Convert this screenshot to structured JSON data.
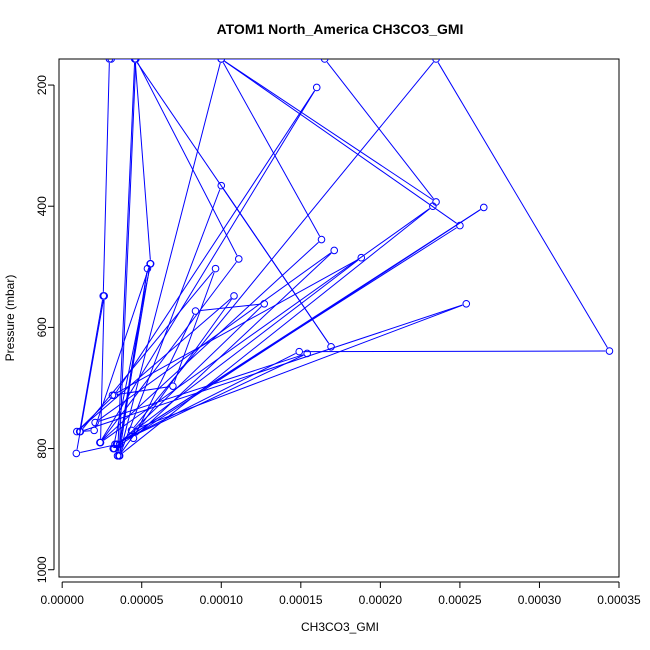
{
  "chart_data": {
    "type": "line",
    "title": "ATOM1 North_America CH3CO3_GMI",
    "xlabel": "CH3CO3_GMI",
    "ylabel": "Pressure (mbar)",
    "xlim": [
      -2e-06,
      0.00035
    ],
    "ylim": [
      1012,
      157
    ],
    "y_reversed": true,
    "grid": false,
    "legend": "none",
    "line_color": "#0000ff",
    "marker": "open-circle",
    "x_ticks": [
      "0.00000",
      "0.00005",
      "0.00010",
      "0.00015",
      "0.00020",
      "0.00025",
      "0.00030",
      "0.00035"
    ],
    "x_tick_values": [
      0.0,
      5e-05,
      0.0001,
      0.00015,
      0.0002,
      0.00025,
      0.0003,
      0.00035
    ],
    "y_ticks": [
      "200",
      "400",
      "600",
      "800",
      "1000"
    ],
    "y_tick_values": [
      200,
      400,
      600,
      800,
      1000
    ],
    "series": [
      {
        "x": [
          3.08e-05,
          4.58e-05,
          5.56e-05,
          3.21e-05,
          3.61e-05,
          0.0001,
          0.000169,
          4.56e-05,
          3.48e-05,
          5.36e-05,
          3.58e-05,
          0.0001,
          0.000163,
          2.37e-05,
          0.00016,
          3.27e-05,
          9.2e-06,
          0.000108,
          3.57e-05,
          0.000233,
          2.41e-05,
          2.64e-05,
          8.9e-06,
          3.47e-05,
          0.000265,
          3.27e-05,
          0.000127,
          8.38e-05,
          4.48e-05,
          0.000171,
          2.07e-05,
          0.000154,
          3.32e-05,
          0.000149,
          0.000344,
          0.000235,
          4.36e-05,
          0.000254,
          1.14e-05,
          9.64e-05,
          6.96e-05,
          3.16e-05,
          0.000188,
          3.42e-05,
          0.00025,
          0.0001,
          0.000235,
          0.000165,
          2.97e-05,
          2.58e-05,
          1.1e-05,
          2.01e-05,
          5.53e-05,
          3.61e-05,
          4.63e-05,
          0.000111,
          2.39e-05
        ],
        "y": [
          157,
          157,
          495,
          800,
          812,
          366,
          632,
          157,
          812,
          503,
          812,
          157,
          455,
          790,
          204,
          712,
          772,
          548,
          812,
          400,
          790,
          548,
          808,
          793,
          402,
          800,
          561,
          573,
          783,
          473,
          757,
          643,
          793,
          640,
          639,
          157,
          770,
          561,
          772,
          503,
          697,
          712,
          485,
          793,
          432,
          157,
          393,
          157,
          157,
          548,
          772,
          770,
          495,
          793,
          157,
          487,
          790
        ]
      }
    ]
  }
}
